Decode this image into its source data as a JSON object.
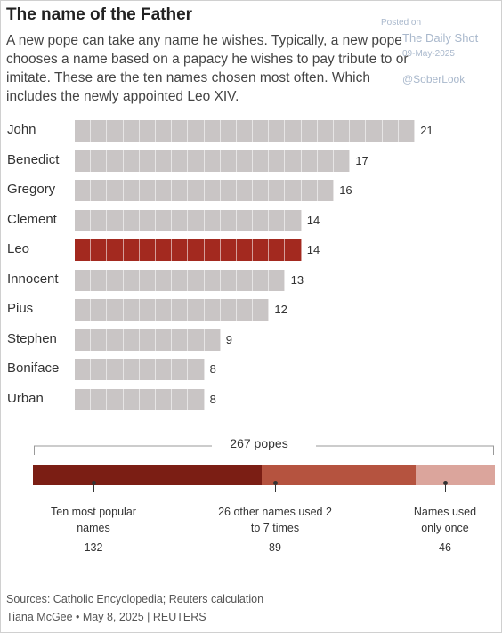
{
  "chart_data": [
    {
      "type": "bar",
      "orientation": "horizontal",
      "title": "The name of the Father",
      "subtitle": "A new pope can take any name he wishes. Typically, a new pope chooses a name based on a papacy he wishes to pay tribute to or imitate. These are the ten names chosen most often. Which includes the newly appointed Leo XIV.",
      "categories": [
        "John",
        "Benedict",
        "Gregory",
        "Clement",
        "Leo",
        "Innocent",
        "Pius",
        "Stephen",
        "Boniface",
        "Urban"
      ],
      "values": [
        21,
        17,
        16,
        14,
        14,
        13,
        12,
        9,
        8,
        8
      ],
      "highlight": "Leo",
      "colors": {
        "default": "#c9c5c5",
        "highlight": "#a3291f"
      },
      "grid": false
    },
    {
      "type": "bar",
      "orientation": "stacked-horizontal",
      "total_label": "267 popes",
      "total": 267,
      "segments": [
        {
          "label": "Ten most popular names",
          "value": 132,
          "color": "#7b1e14"
        },
        {
          "label": "26 other names used 2 to 7 times",
          "value": 89,
          "color": "#b5533f"
        },
        {
          "label": "Names used only once",
          "value": 46,
          "color": "#dba59c"
        }
      ]
    }
  ],
  "footer": {
    "source": "Sources: Catholic Encyclopedia; Reuters calculation",
    "credit": "Tiana McGee • May 8, 2025 | REUTERS"
  },
  "watermark": {
    "posted": "Posted on",
    "name": "The Daily Shot",
    "date": "09-May-2025",
    "handle": "@SoberLook"
  }
}
